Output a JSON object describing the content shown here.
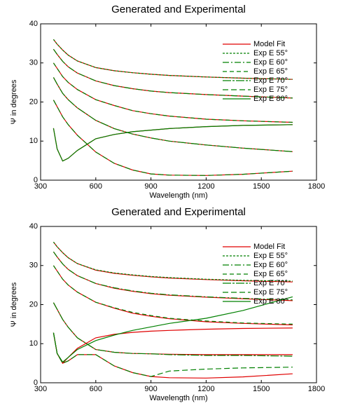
{
  "chart_data": [
    {
      "type": "line",
      "title": "Generated and Experimental",
      "x_label": "Wavelength (nm)",
      "y_label": "Ψ in degrees",
      "x": [
        370,
        390,
        420,
        450,
        500,
        600,
        700,
        800,
        900,
        1000,
        1200,
        1400,
        1670
      ],
      "xlim": [
        300,
        1800
      ],
      "xticks": [
        300,
        600,
        900,
        1200,
        1500,
        1800
      ],
      "ylim": [
        0,
        40
      ],
      "yticks": [
        0,
        10,
        20,
        30,
        40
      ],
      "series": [
        {
          "name": "Model Fit",
          "color": "#e00000",
          "values": [
            [
              36,
              34.8,
              33.3,
              32,
              30.5,
              28.8,
              28,
              27.5,
              27.1,
              26.8,
              26.4,
              26.1,
              25.8
            ],
            [
              33.5,
              32.2,
              30.4,
              29,
              27.4,
              25.4,
              24.2,
              23.4,
              22.8,
              22.4,
              21.9,
              21.5,
              21
            ],
            [
              30,
              28.6,
              26.5,
              25,
              23.2,
              20.6,
              19.1,
              17.8,
              17,
              16.4,
              15.6,
              15.2,
              14.8
            ],
            [
              26.3,
              24.6,
              22.2,
              20.6,
              18.5,
              15.3,
              13.2,
              11.8,
              10.8,
              10,
              9,
              8.2,
              7.3
            ],
            [
              20.5,
              18.8,
              16.2,
              14.2,
              11.5,
              7.2,
              4.3,
              2.6,
              1.6,
              1.3,
              1.2,
              1.5,
              2.3
            ],
            [
              13.3,
              8,
              4.9,
              5.6,
              7.6,
              10.6,
              11.7,
              12.4,
              12.8,
              13.2,
              13.7,
              14,
              14.2
            ]
          ]
        },
        {
          "name": "Exp E 55°",
          "color": "#008000",
          "values": [
            36,
            34.8,
            33.3,
            32,
            30.5,
            28.8,
            28,
            27.5,
            27.1,
            26.8,
            26.4,
            26.1,
            25.8
          ]
        },
        {
          "name": "Exp E 60°",
          "color": "#008000",
          "values": [
            33.5,
            32.2,
            30.4,
            29,
            27.4,
            25.4,
            24.2,
            23.4,
            22.8,
            22.4,
            21.9,
            21.5,
            21
          ]
        },
        {
          "name": "Exp E 65°",
          "color": "#008000",
          "values": [
            30,
            28.6,
            26.5,
            25,
            23.2,
            20.6,
            19.1,
            17.8,
            17,
            16.4,
            15.6,
            15.2,
            14.8
          ]
        },
        {
          "name": "Exp E 70°",
          "color": "#008000",
          "values": [
            26.3,
            24.6,
            22.2,
            20.6,
            18.5,
            15.3,
            13.2,
            11.8,
            10.8,
            10,
            9,
            8.2,
            7.3
          ]
        },
        {
          "name": "Exp E 75°",
          "color": "#008000",
          "values": [
            20.5,
            18.8,
            16.2,
            14.2,
            11.5,
            7.2,
            4.3,
            2.6,
            1.6,
            1.3,
            1.2,
            1.5,
            2.3
          ]
        },
        {
          "name": "Exp E 80°",
          "color": "#008000",
          "values": [
            13.3,
            8,
            4.9,
            5.6,
            7.6,
            10.6,
            11.7,
            12.4,
            12.8,
            13.2,
            13.7,
            14,
            14.2
          ]
        }
      ]
    },
    {
      "type": "line",
      "title": "Generated and Experimental",
      "x_label": "Wavelength (nm)",
      "y_label": "Ψ in degrees",
      "x": [
        370,
        390,
        420,
        450,
        500,
        600,
        700,
        800,
        900,
        1000,
        1200,
        1400,
        1670
      ],
      "xlim": [
        300,
        1800
      ],
      "xticks": [
        300,
        600,
        900,
        1200,
        1500,
        1800
      ],
      "ylim": [
        0,
        40
      ],
      "yticks": [
        0,
        10,
        20,
        30,
        40
      ],
      "series": [
        {
          "name": "Model Fit",
          "color": "#e00000",
          "values": [
            [
              36,
              34.8,
              33.3,
              32,
              30.5,
              28.8,
              28,
              27.5,
              27.1,
              26.8,
              26.4,
              26.1,
              25.8
            ],
            [
              33.5,
              32.2,
              30.4,
              29,
              27.4,
              25.4,
              24.2,
              23.4,
              22.8,
              22.4,
              21.9,
              21.5,
              21
            ],
            [
              30,
              28.6,
              26.5,
              25,
              23.2,
              20.6,
              19.1,
              17.8,
              17,
              16.4,
              15.6,
              15.2,
              14.8
            ],
            [
              20.5,
              18.8,
              16.2,
              14.2,
              11.5,
              8.5,
              7.8,
              7.5,
              7.4,
              7.3,
              7.2,
              7.2,
              7.2
            ],
            [
              12.8,
              7.5,
              5,
              5.6,
              7.2,
              7.2,
              4.3,
              2.6,
              1.6,
              1.3,
              1.2,
              1.5,
              2.3
            ],
            [
              12.8,
              7.5,
              5,
              6.5,
              8.8,
              11.5,
              12.4,
              12.9,
              13.2,
              13.4,
              13.7,
              13.9,
              14
            ]
          ]
        },
        {
          "name": "Exp E 55°",
          "color": "#008000",
          "values": [
            36,
            34.8,
            33.3,
            32,
            30.5,
            28.9,
            28.1,
            27.6,
            27.2,
            26.9,
            26.5,
            26.2,
            26
          ]
        },
        {
          "name": "Exp E 60°",
          "color": "#008000",
          "values": [
            33.5,
            32.2,
            30.4,
            29,
            27.4,
            25.4,
            24.3,
            23.5,
            22.9,
            22.5,
            22,
            21.6,
            21.2
          ]
        },
        {
          "name": "Exp E 65°",
          "color": "#008000",
          "values": [
            30,
            28.6,
            26.5,
            25,
            23.2,
            20.6,
            19.2,
            18,
            17.2,
            16.5,
            15.8,
            15.3,
            15
          ]
        },
        {
          "name": "Exp E 70°",
          "color": "#008000",
          "values": [
            20.5,
            18.8,
            16.2,
            14.2,
            11.5,
            8.5,
            7.8,
            7.5,
            7.4,
            7.2,
            7,
            7,
            6.8
          ]
        },
        {
          "name": "Exp E 75°",
          "color": "#008000",
          "values": [
            12.8,
            7.5,
            5,
            5.6,
            7.2,
            7.2,
            4.3,
            2.6,
            1.6,
            3,
            3.5,
            3.8,
            4
          ]
        },
        {
          "name": "Exp E 80°",
          "color": "#008000",
          "values": [
            12.8,
            7.5,
            5.3,
            6.5,
            8.5,
            10.8,
            12.2,
            13.4,
            14.3,
            15.2,
            16.5,
            18.5,
            22
          ]
        }
      ]
    }
  ]
}
